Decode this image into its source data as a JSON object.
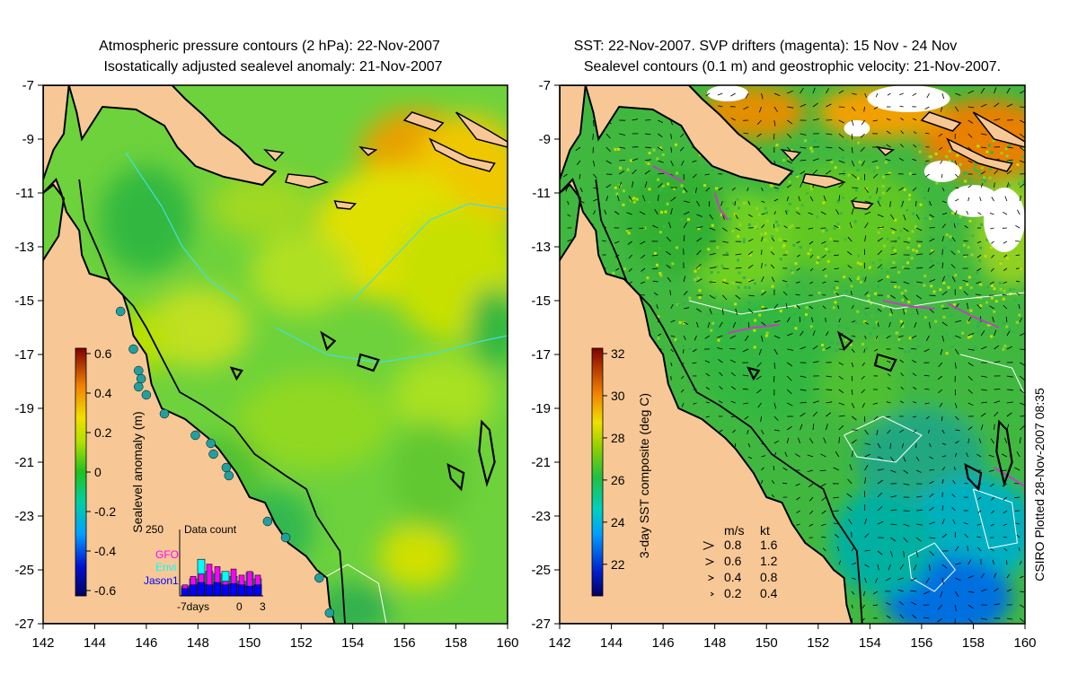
{
  "left_panel": {
    "title_line1": "Atmospheric pressure contours (2 hPa): 22-Nov-2007",
    "title_line2": "Isostatically adjusted sealevel anomaly: 21-Nov-2007",
    "colorbar": {
      "label": "Sealevel anomaly (m)",
      "ticks": [
        "0.6",
        "0.4",
        "0.2",
        "0",
        "-0.2",
        "-0.4",
        "-0.6"
      ],
      "range": [
        -0.6,
        0.6
      ]
    },
    "data_count": {
      "title": "Data count",
      "y_label": "250",
      "x_labels": [
        "-7days",
        "0",
        "3"
      ],
      "legend": [
        {
          "name": "GFO",
          "color": "#ff00ff"
        },
        {
          "name": "Envi",
          "color": "#00ffff"
        },
        {
          "name": "Jason1",
          "color": "#0000ff"
        }
      ],
      "bars": [
        {
          "day": -7,
          "jason1": 30,
          "envi": 40,
          "gfo": 45
        },
        {
          "day": -6,
          "jason1": 45,
          "envi": 70,
          "gfo": 80
        },
        {
          "day": -5,
          "jason1": 55,
          "envi": 150,
          "gfo": 90
        },
        {
          "day": -4,
          "jason1": 45,
          "envi": 100,
          "gfo": 130
        },
        {
          "day": -3,
          "jason1": 55,
          "envi": 90,
          "gfo": 120
        },
        {
          "day": -2,
          "jason1": 45,
          "envi": 100,
          "gfo": 60
        },
        {
          "day": -1,
          "jason1": 50,
          "envi": 80,
          "gfo": 110
        },
        {
          "day": 0,
          "jason1": 45,
          "envi": 60,
          "gfo": 85
        },
        {
          "day": 1,
          "jason1": 40,
          "envi": 95,
          "gfo": 100
        },
        {
          "day": 2,
          "jason1": 45,
          "envi": 70,
          "gfo": 85
        }
      ]
    }
  },
  "right_panel": {
    "title_line1": "SST: 22-Nov-2007. SVP drifters (magenta): 15 Nov - 24 Nov",
    "title_line2": "Sealevel contours (0.1 m) and geostrophic velocity: 21-Nov-2007.",
    "colorbar": {
      "label": "3-day SST composite (deg C)",
      "ticks": [
        "32",
        "30",
        "28",
        "26",
        "24",
        "22"
      ],
      "range": [
        20.5,
        32
      ]
    },
    "velocity_legend": {
      "header_ms": "m/s",
      "header_kt": "kt",
      "rows": [
        {
          "ms": "0.8",
          "kt": "1.6"
        },
        {
          "ms": "0.6",
          "kt": "1.2"
        },
        {
          "ms": "0.4",
          "kt": "0.8"
        },
        {
          "ms": "0.2",
          "kt": "0.4"
        }
      ]
    },
    "credit": "CSIRO Plotted 28-Nov-2007 08:35"
  },
  "axes": {
    "x_ticks": [
      "142",
      "144",
      "146",
      "148",
      "150",
      "152",
      "154",
      "156",
      "158",
      "160"
    ],
    "y_ticks": [
      "-7",
      "-9",
      "-11",
      "-13",
      "-15",
      "-17",
      "-19",
      "-21",
      "-23",
      "-25",
      "-27"
    ],
    "lon_range": [
      142,
      160
    ],
    "lat_range": [
      -7,
      -27
    ]
  },
  "colors": {
    "land": "#f7c896",
    "coast": "#000000",
    "pressure_contour": "#40e0e0",
    "drifter": "#c040c0",
    "tide_gauge": "#20a0a0"
  }
}
